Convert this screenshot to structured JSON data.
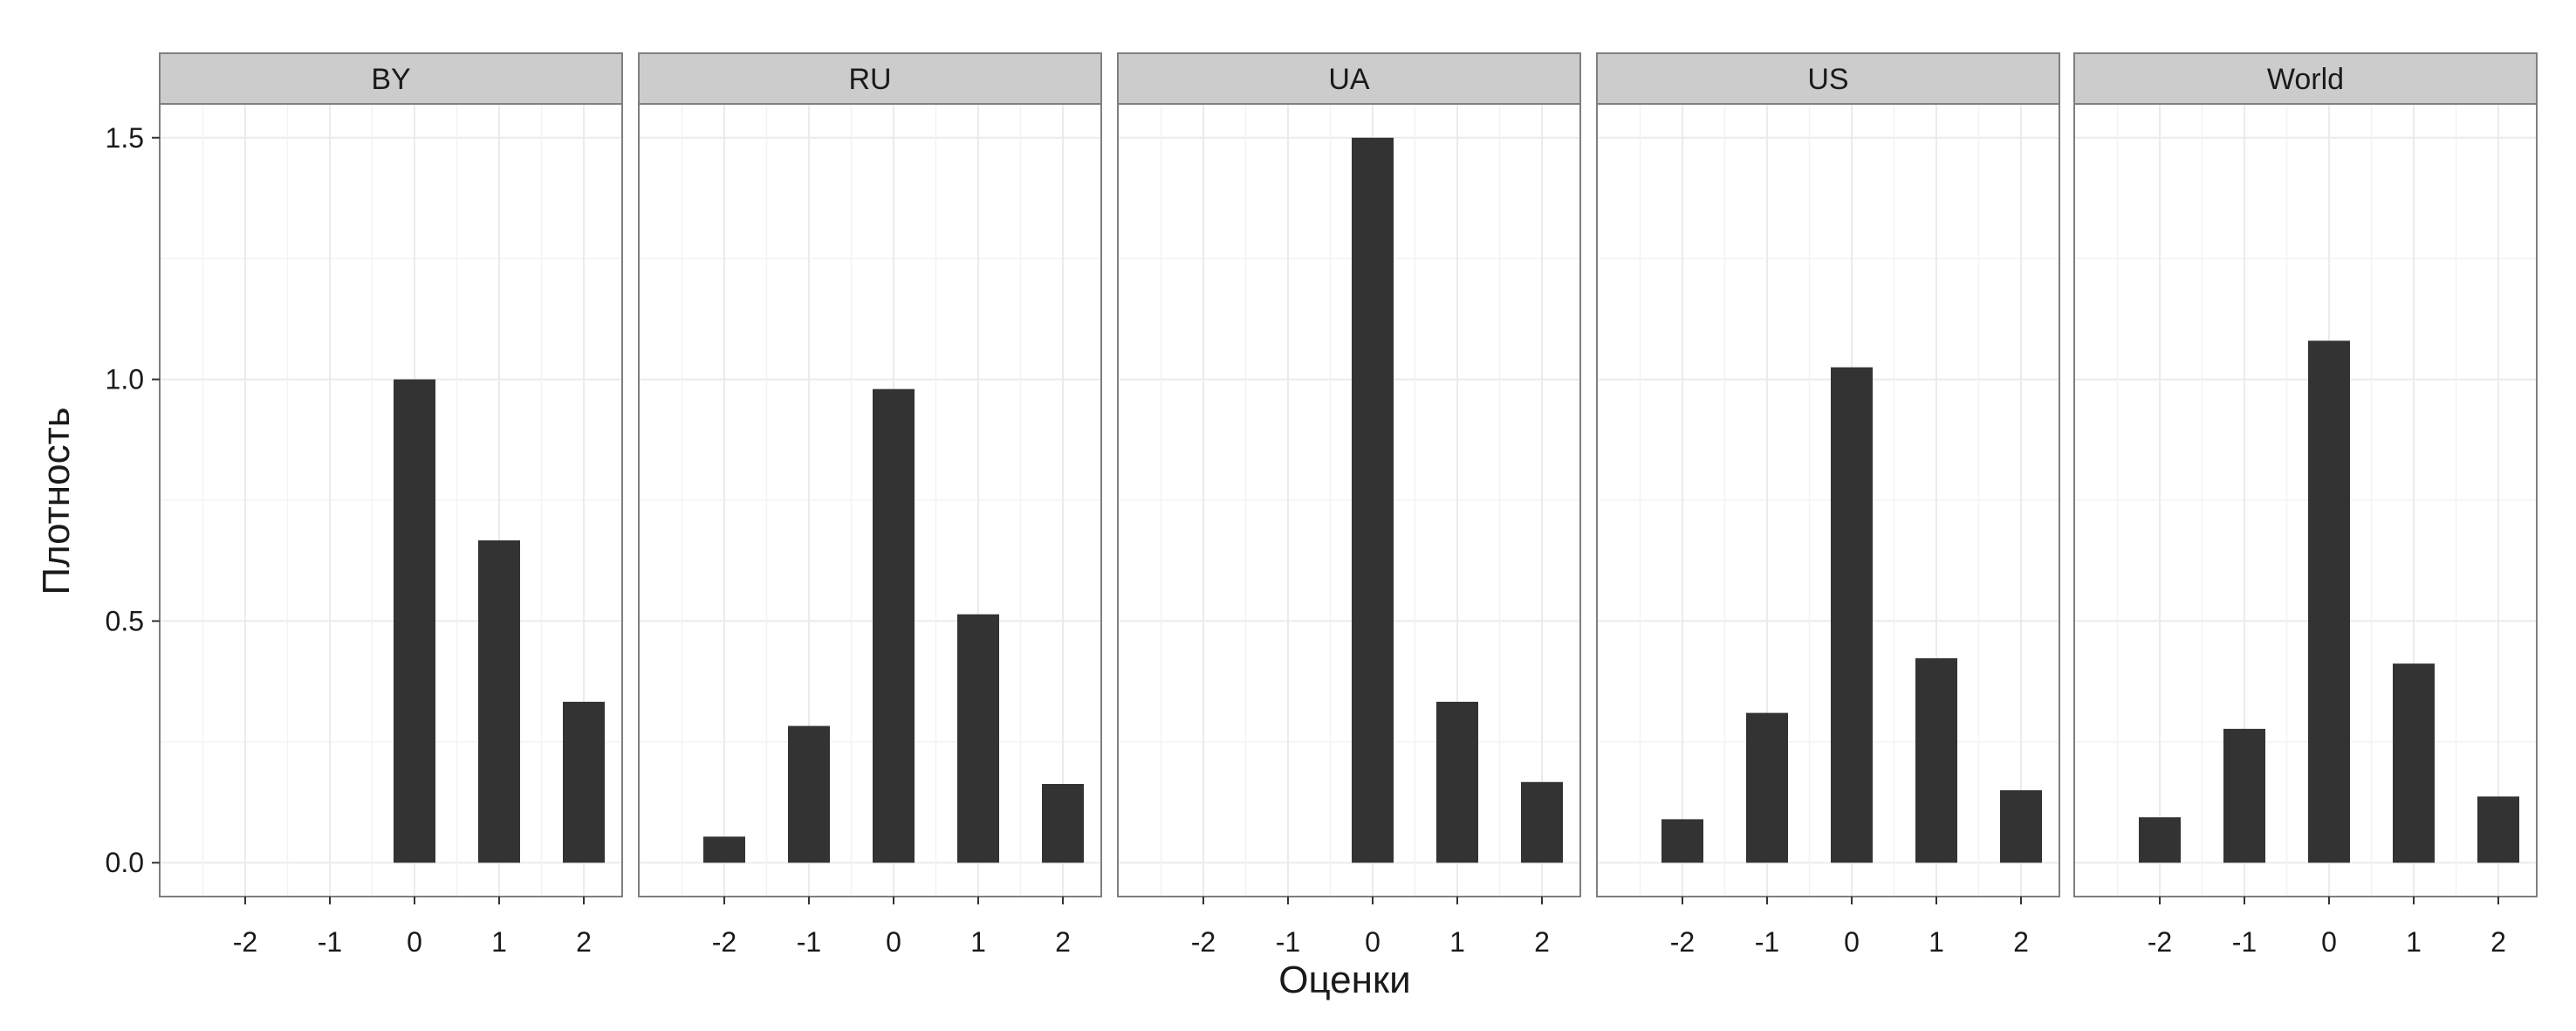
{
  "chart_data": {
    "type": "bar",
    "xlabel": "Оценки",
    "ylabel": "Плотность",
    "categories": [
      "-2",
      "-1",
      "0",
      "1",
      "2"
    ],
    "ylim": [
      -0.07,
      1.57
    ],
    "yticks": [
      0.0,
      0.5,
      1.0,
      1.5
    ],
    "ytick_labels": [
      "0.0",
      "0.5",
      "1.0",
      "1.5"
    ],
    "grid": true,
    "bar_color": "#333333",
    "panel_border_color": "#7f7f7f",
    "strip_fill_color": "#cccccc",
    "grid_color": "#ebebeb",
    "facets": [
      {
        "name": "BY",
        "values": [
          0,
          0,
          1.0,
          0.667,
          0.333
        ]
      },
      {
        "name": "RU",
        "values": [
          0.054,
          0.283,
          0.98,
          0.514,
          0.163
        ]
      },
      {
        "name": "UA",
        "values": [
          0,
          0,
          1.5,
          0.333,
          0.167
        ]
      },
      {
        "name": "US",
        "values": [
          0.09,
          0.31,
          1.025,
          0.423,
          0.15
        ]
      },
      {
        "name": "World",
        "values": [
          0.094,
          0.277,
          1.08,
          0.412,
          0.137
        ]
      }
    ]
  }
}
